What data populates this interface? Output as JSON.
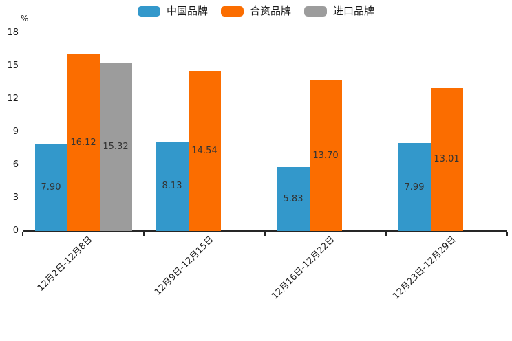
{
  "chart_data": {
    "type": "bar",
    "title": "",
    "ylabel": "%",
    "xlabel": "",
    "categories": [
      "12月2日-12月8日",
      "12月9日-12月15日",
      "12月16日-12月22日",
      "12月23日-12月29日"
    ],
    "series": [
      {
        "name": "中国品牌",
        "color": "#3398cb",
        "values": [
          7.9,
          8.13,
          5.83,
          7.99
        ],
        "labels": [
          "7.90",
          "8.13",
          "5.83",
          "7.99"
        ]
      },
      {
        "name": "合资品牌",
        "color": "#fb6d00",
        "values": [
          16.12,
          14.54,
          13.7,
          13.01
        ],
        "labels": [
          "16.12",
          "14.54",
          "13.70",
          "13.01"
        ]
      },
      {
        "name": "进口品牌",
        "color": "#9c9c9c",
        "values": [
          15.32,
          null,
          null,
          null
        ],
        "labels": [
          "15.32",
          null,
          null,
          null
        ]
      }
    ],
    "ylim": [
      0,
      18
    ],
    "yticks": [
      0,
      3,
      6,
      9,
      12,
      15,
      18
    ],
    "grid": false,
    "legend_position": "top"
  },
  "colors": {
    "axis": "#262626",
    "tick_label": "#1a1a1a",
    "value_label": "#333333",
    "background": "#ffffff"
  }
}
